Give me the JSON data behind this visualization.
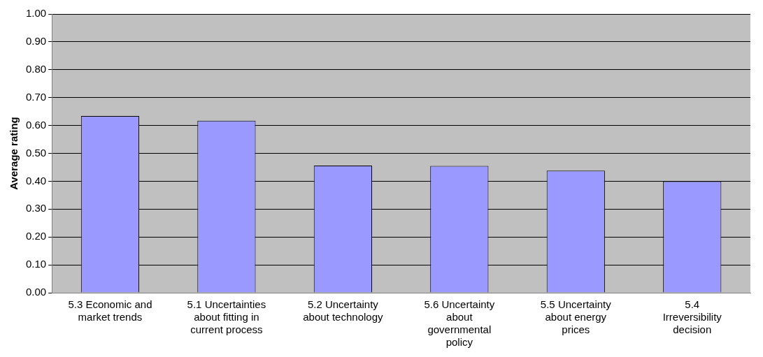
{
  "chart_data": {
    "type": "bar",
    "ylabel": "Average rating",
    "categories": [
      "5.3 Economic and market trends",
      "5.1 Uncertainties about fitting in current process",
      "5.2 Uncertainty about technology",
      "5.6 Uncertainty about governmental policy",
      "5.5 Uncertainty about energy prices",
      "5.4 Irreversibility decision"
    ],
    "values": [
      0.634,
      0.617,
      0.456,
      0.455,
      0.438,
      0.4
    ],
    "color": "#9999ff",
    "ylim": [
      0,
      1
    ],
    "yticks": [
      {
        "value": 0,
        "label": "0.00"
      },
      {
        "value": 0.1,
        "label": "0.10"
      },
      {
        "value": 0.2,
        "label": "0.20"
      },
      {
        "value": 0.3,
        "label": "0.30"
      },
      {
        "value": 0.4,
        "label": "0.40"
      },
      {
        "value": 0.5,
        "label": "0.50"
      },
      {
        "value": 0.6,
        "label": "0.60"
      },
      {
        "value": 0.7,
        "label": "0.70"
      },
      {
        "value": 0.8,
        "label": "0.80"
      },
      {
        "value": 0.9,
        "label": "0.90"
      },
      {
        "value": 1,
        "label": "1.00"
      }
    ],
    "grid": "y",
    "legend": false
  }
}
